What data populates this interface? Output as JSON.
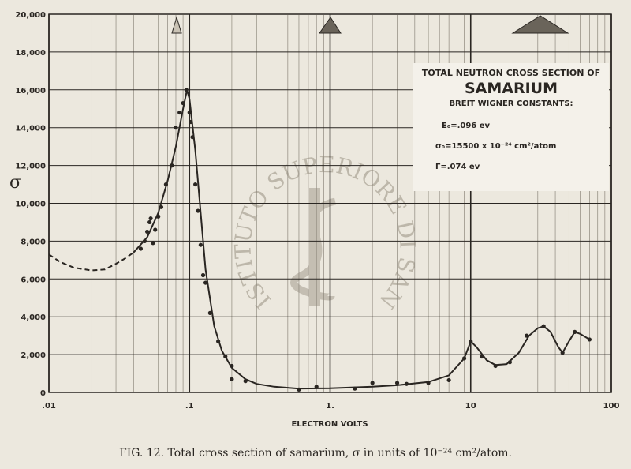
{
  "chart_data": {
    "type": "line",
    "log_x": true,
    "grid": true,
    "color": "#2a2622",
    "xlim": [
      0.01,
      100
    ],
    "ylim": [
      0,
      20000
    ],
    "xticks": [
      {
        "value": 0.01,
        "label": ".01"
      },
      {
        "value": 0.1,
        "label": ".1"
      },
      {
        "value": 1,
        "label": "1."
      },
      10,
      100
    ],
    "x_minor_ticks": [
      0.02,
      0.03,
      0.04,
      0.05,
      0.06,
      0.07,
      0.08,
      0.09,
      0.2,
      0.3,
      0.4,
      0.5,
      0.6,
      0.7,
      0.8,
      0.9,
      2,
      3,
      4,
      5,
      6,
      7,
      8,
      9,
      20,
      30,
      40,
      50,
      60,
      70,
      80,
      90
    ],
    "yticks": [
      0,
      {
        "value": 2000,
        "label": "2,000"
      },
      {
        "value": 4000,
        "label": "4,000"
      },
      {
        "value": 6000,
        "label": "6,000"
      },
      {
        "value": 8000,
        "label": "8,000"
      },
      {
        "value": 10000,
        "label": "10,000"
      },
      {
        "value": 12000,
        "label": "12,000"
      },
      {
        "value": 14000,
        "label": "14,000"
      },
      {
        "value": 16000,
        "label": "16,000"
      },
      {
        "value": 18000,
        "label": "18,000"
      },
      {
        "value": 20000,
        "label": "20,000"
      }
    ],
    "x_label": "ELECTRON VOLTS",
    "y_label": "σ",
    "caption": "FIG. 12. Total cross section of samarium, σ in units of 10⁻²⁴ cm²/atom.",
    "annotation": {
      "line1": "TOTAL NEUTRON CROSS SECTION OF",
      "line2": "SAMARIUM",
      "line3": "BREIT WIGNER CONSTANTS:",
      "line4": "E₀=.096 ev",
      "line5": "σ₀=15500 x 10⁻²⁴ cm²/atom",
      "line6": "Γ=.074 ev"
    },
    "watermark": "ISTITUTO SUPERIORE DI SANITÀ",
    "series": [
      {
        "dashed": true,
        "x": [
          0.01,
          0.012,
          0.015,
          0.02,
          0.025,
          0.03,
          0.035,
          0.04
        ],
        "values": [
          7300,
          6900,
          6600,
          6450,
          6500,
          6800,
          7100,
          7400
        ]
      },
      {
        "dashed": false,
        "x": [
          0.04,
          0.05,
          0.06,
          0.07,
          0.08,
          0.09,
          0.096,
          0.1,
          0.11,
          0.12,
          0.13,
          0.15,
          0.17,
          0.2,
          0.25,
          0.3,
          0.4,
          0.6,
          1,
          2,
          3,
          5,
          7,
          9,
          10,
          11,
          13,
          15,
          18,
          22,
          26,
          30,
          33,
          37,
          42,
          45,
          50,
          55,
          60,
          70
        ],
        "values": [
          7400,
          8200,
          9500,
          11200,
          13000,
          15000,
          16000,
          15500,
          12800,
          9500,
          6500,
          3500,
          2200,
          1300,
          700,
          450,
          300,
          200,
          220,
          300,
          380,
          550,
          900,
          1800,
          2700,
          2400,
          1700,
          1450,
          1500,
          2100,
          3000,
          3400,
          3500,
          3200,
          2400,
          2100,
          2700,
          3200,
          3100,
          2800
        ]
      }
    ],
    "points": {
      "x": [
        0.045,
        0.048,
        0.05,
        0.052,
        0.053,
        0.055,
        0.057,
        0.06,
        0.063,
        0.068,
        0.075,
        0.08,
        0.085,
        0.09,
        0.095,
        0.1,
        0.102,
        0.105,
        0.11,
        0.115,
        0.12,
        0.125,
        0.13,
        0.14,
        0.16,
        0.18,
        0.2,
        0.2,
        0.25,
        0.6,
        0.8,
        1.5,
        2,
        3,
        3.5,
        5,
        7,
        9,
        10,
        12,
        15,
        19,
        25,
        33,
        45,
        55,
        70
      ],
      "values": [
        7600,
        8000,
        8500,
        9000,
        9200,
        7900,
        8600,
        9300,
        9800,
        11000,
        12000,
        14000,
        14800,
        15300,
        16000,
        14800,
        14300,
        13500,
        11000,
        9600,
        7800,
        6200,
        5800,
        4200,
        2700,
        1900,
        1400,
        700,
        600,
        150,
        300,
        200,
        500,
        500,
        450,
        500,
        650,
        1800,
        2700,
        1900,
        1400,
        1600,
        3000,
        3500,
        2100,
        3200,
        2800
      ]
    }
  }
}
